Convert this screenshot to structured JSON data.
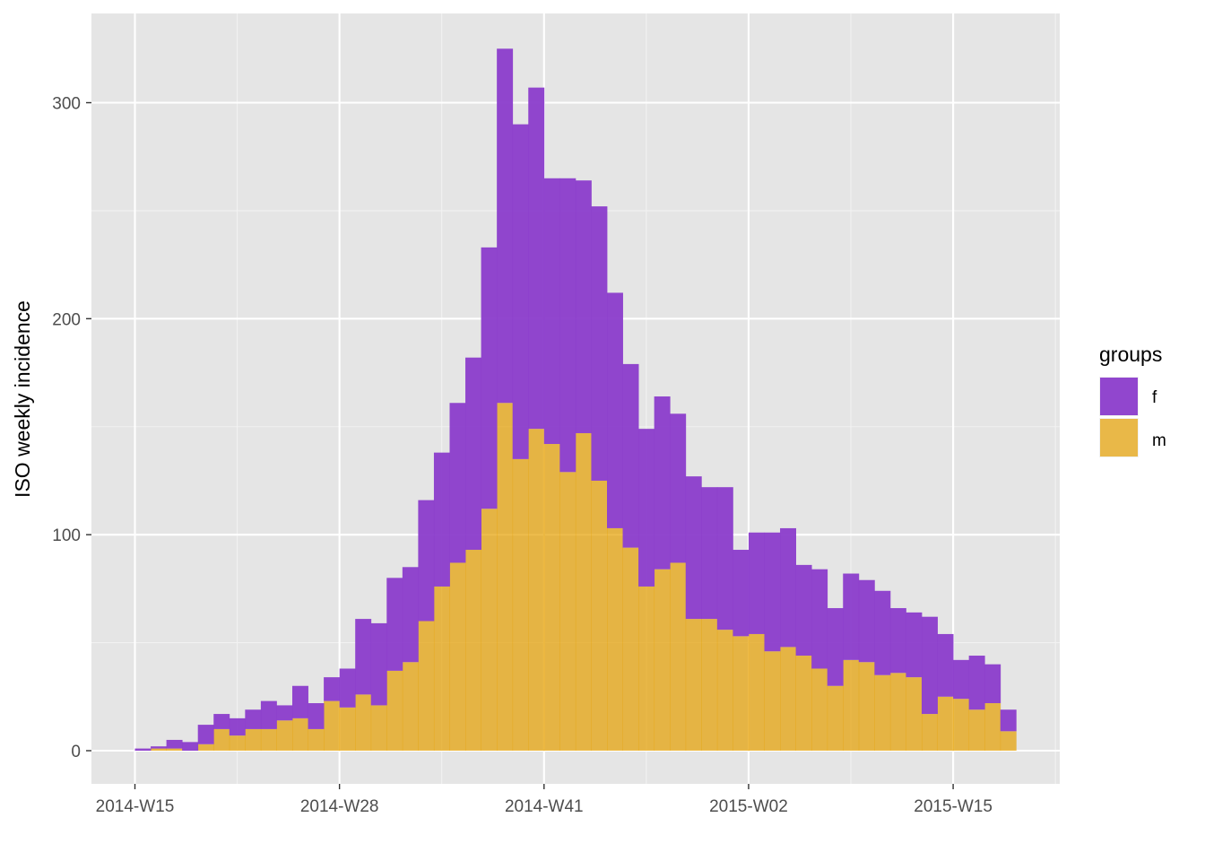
{
  "chart_data": {
    "type": "bar",
    "stacked": true,
    "ylabel": "ISO weekly incidence",
    "xlabel": "",
    "x_tick_labels": [
      "2014-W15",
      "2014-W28",
      "2014-W41",
      "2015-W02",
      "2015-W15"
    ],
    "x_tick_week_index": [
      0,
      13,
      26,
      39,
      52
    ],
    "y_ticks": [
      0,
      100,
      200,
      300
    ],
    "ylim": [
      -15,
      345
    ],
    "grid": true,
    "legend": {
      "title": "groups",
      "placement": "right"
    },
    "categories": [
      "2014-W15",
      "2014-W16",
      "2014-W17",
      "2014-W18",
      "2014-W19",
      "2014-W20",
      "2014-W21",
      "2014-W22",
      "2014-W23",
      "2014-W24",
      "2014-W25",
      "2014-W26",
      "2014-W27",
      "2014-W28",
      "2014-W29",
      "2014-W30",
      "2014-W31",
      "2014-W32",
      "2014-W33",
      "2014-W34",
      "2014-W35",
      "2014-W36",
      "2014-W37",
      "2014-W38",
      "2014-W39",
      "2014-W40",
      "2014-W41",
      "2014-W42",
      "2014-W43",
      "2014-W44",
      "2014-W45",
      "2014-W46",
      "2014-W47",
      "2014-W48",
      "2014-W49",
      "2014-W50",
      "2014-W51",
      "2014-W52",
      "2015-W01",
      "2015-W02",
      "2015-W03",
      "2015-W04",
      "2015-W05",
      "2015-W06",
      "2015-W07",
      "2015-W08",
      "2015-W09",
      "2015-W10",
      "2015-W11",
      "2015-W12",
      "2015-W13",
      "2015-W14",
      "2015-W15",
      "2015-W16",
      "2015-W17",
      "2015-W18"
    ],
    "series": [
      {
        "name": "m",
        "color": "#E69F00",
        "values": [
          0,
          1,
          1,
          0,
          3,
          10,
          7,
          10,
          10,
          14,
          15,
          10,
          23,
          20,
          26,
          21,
          37,
          41,
          60,
          76,
          87,
          93,
          112,
          161,
          135,
          149,
          142,
          129,
          147,
          125,
          103,
          94,
          76,
          84,
          87,
          61,
          61,
          56,
          53,
          54,
          46,
          48,
          44,
          38,
          30,
          42,
          41,
          35,
          36,
          34,
          17,
          25,
          24,
          19,
          22,
          9
        ]
      },
      {
        "name": "f",
        "color": "#8B3CCB",
        "values": [
          1,
          1,
          4,
          4,
          9,
          7,
          8,
          9,
          13,
          7,
          15,
          12,
          11,
          18,
          35,
          38,
          43,
          44,
          56,
          62,
          74,
          89,
          121,
          164,
          155,
          158,
          123,
          136,
          117,
          127,
          109,
          85,
          73,
          80,
          69,
          66,
          61,
          66,
          40,
          47,
          55,
          55,
          42,
          46,
          36,
          40,
          38,
          39,
          30,
          30,
          45,
          29,
          18,
          25,
          18,
          10
        ]
      }
    ]
  }
}
